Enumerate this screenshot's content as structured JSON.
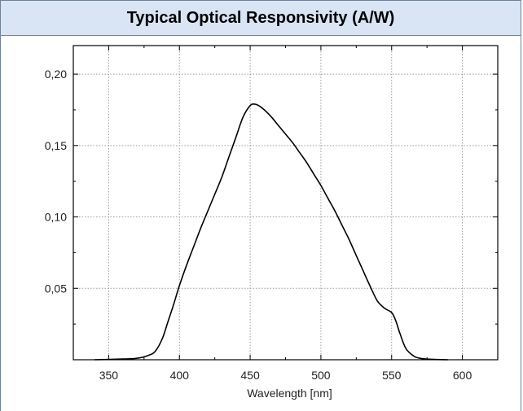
{
  "header": {
    "title": "Typical Optical Responsivity (A/W)"
  },
  "chart_data": {
    "type": "line",
    "title": "Typical Optical Responsivity (A/W)",
    "xlabel": "Wavelength [nm]",
    "ylabel": "",
    "xlim": [
      325,
      625
    ],
    "ylim": [
      0,
      0.22
    ],
    "x_ticks": [
      350,
      400,
      450,
      500,
      550,
      600
    ],
    "x_tick_labels": [
      "350",
      "400",
      "450",
      "500",
      "550",
      "600"
    ],
    "y_ticks": [
      0.05,
      0.1,
      0.15,
      0.2
    ],
    "y_tick_labels": [
      "0,05",
      "0,10",
      "0,15",
      "0,20"
    ],
    "grid": true,
    "series": [
      {
        "name": "",
        "x": [
          340,
          360,
          370,
          378,
          383,
          388,
          392,
          396,
          400,
          405,
          410,
          415,
          420,
          425,
          430,
          435,
          440,
          445,
          450,
          453,
          456,
          460,
          465,
          470,
          475,
          480,
          485,
          490,
          495,
          500,
          505,
          510,
          515,
          520,
          525,
          530,
          535,
          540,
          545,
          550,
          553,
          556,
          560,
          565,
          570,
          580,
          590
        ],
        "y": [
          0.0,
          0.0005,
          0.001,
          0.003,
          0.006,
          0.015,
          0.027,
          0.039,
          0.052,
          0.066,
          0.079,
          0.092,
          0.104,
          0.116,
          0.128,
          0.142,
          0.156,
          0.17,
          0.178,
          0.179,
          0.178,
          0.175,
          0.17,
          0.164,
          0.158,
          0.152,
          0.145,
          0.138,
          0.13,
          0.122,
          0.113,
          0.104,
          0.094,
          0.084,
          0.073,
          0.062,
          0.051,
          0.041,
          0.036,
          0.033,
          0.027,
          0.018,
          0.008,
          0.003,
          0.001,
          0.0002,
          0.0
        ]
      }
    ]
  }
}
